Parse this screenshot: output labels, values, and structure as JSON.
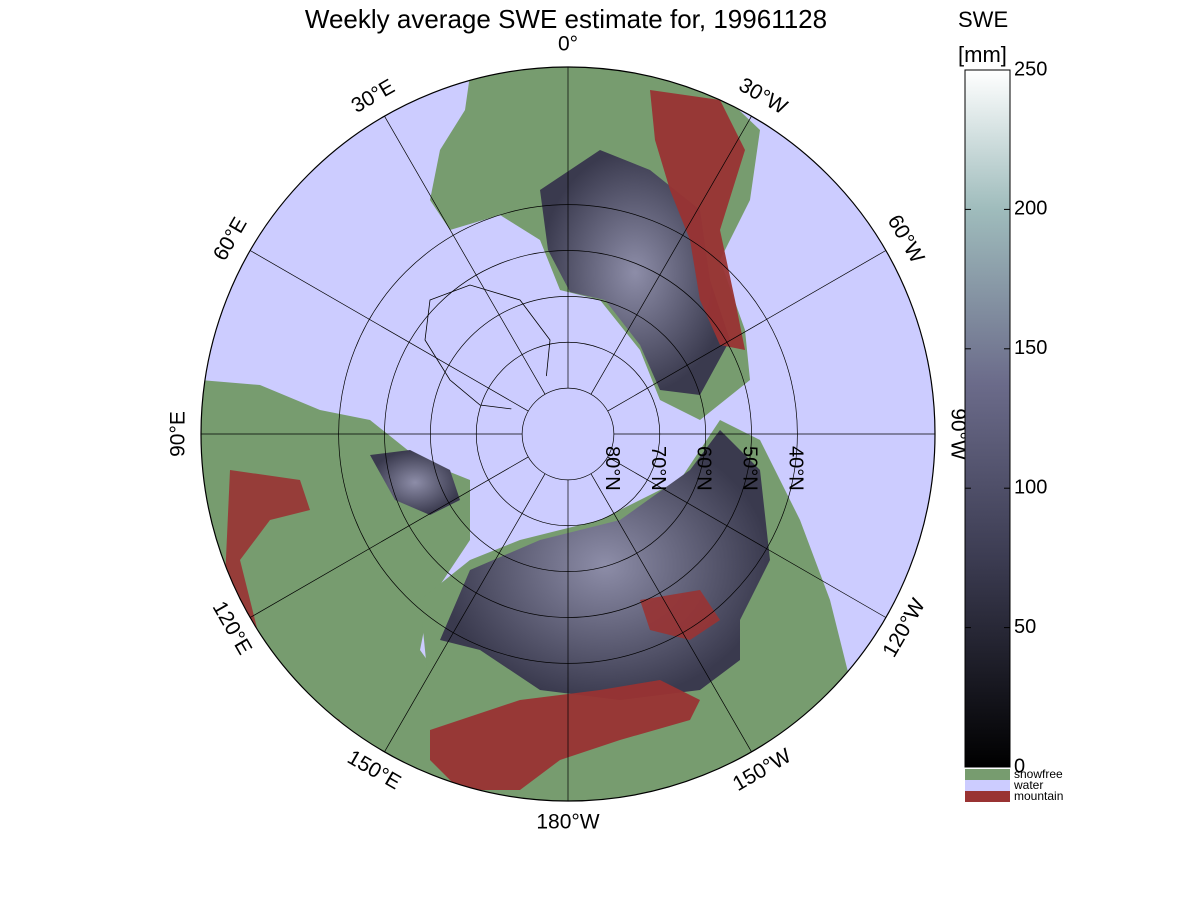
{
  "title": "Weekly average SWE estimate for, 19961128",
  "colorbar": {
    "title_line1": "SWE",
    "title_line2": "[mm]",
    "ticks": [
      "0",
      "50",
      "100",
      "150",
      "200",
      "250"
    ],
    "categories": [
      {
        "label": "snowfree",
        "color": "#779c6f"
      },
      {
        "label": "water",
        "color": "#ccccff"
      },
      {
        "label": "mountain",
        "color": "#993333"
      }
    ]
  },
  "longitude_labels": [
    {
      "text": "90°W",
      "lon_deg": 90,
      "hemi": "W"
    },
    {
      "text": "120°W",
      "lon_deg": 120,
      "hemi": "W"
    },
    {
      "text": "150°W",
      "lon_deg": 150,
      "hemi": "W"
    },
    {
      "text": "180°W",
      "lon_deg": 180,
      "hemi": "W"
    },
    {
      "text": "150°E",
      "lon_deg": 150,
      "hemi": "E"
    },
    {
      "text": "120°E",
      "lon_deg": 120,
      "hemi": "E"
    },
    {
      "text": "90°E",
      "lon_deg": 90,
      "hemi": "E"
    },
    {
      "text": "60°E",
      "lon_deg": 60,
      "hemi": "E"
    },
    {
      "text": "30°E",
      "lon_deg": 30,
      "hemi": "E"
    },
    {
      "text": "0°",
      "lon_deg": 0,
      "hemi": "E"
    },
    {
      "text": "30°W",
      "lon_deg": 30,
      "hemi": "W"
    },
    {
      "text": "60°W",
      "lon_deg": 60,
      "hemi": "W"
    }
  ],
  "latitude_labels": [
    {
      "text": "80°N",
      "lat_deg": 80
    },
    {
      "text": "70°N",
      "lat_deg": 70
    },
    {
      "text": "60°N",
      "lat_deg": 60
    },
    {
      "text": "50°N",
      "lat_deg": 50
    },
    {
      "text": "40°N",
      "lat_deg": 40
    }
  ]
}
